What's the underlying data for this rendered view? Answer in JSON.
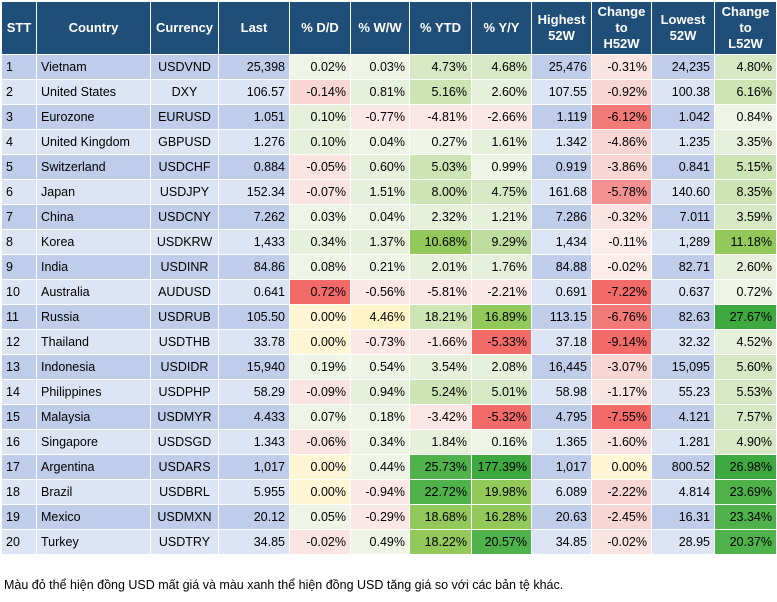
{
  "headers": [
    "STT",
    "Country",
    "Currency",
    "Last",
    "% D/D",
    "% W/W",
    "% YTD",
    "% Y/Y",
    "Highest\n52W",
    "Change\nto\nH52W",
    "Lowest\n52W",
    "Change\nto\nL52W"
  ],
  "rows": [
    [
      "1",
      "Vietnam",
      "USDVND",
      "25,398",
      "0.02%",
      "0.03%",
      "4.73%",
      "4.68%",
      "25,476",
      "-0.31%",
      "24,235",
      "4.80%"
    ],
    [
      "2",
      "United States",
      "DXY",
      "106.57",
      "-0.14%",
      "0.81%",
      "5.16%",
      "2.60%",
      "107.55",
      "-0.92%",
      "100.38",
      "6.16%"
    ],
    [
      "3",
      "Eurozone",
      "EURUSD",
      "1.051",
      "0.10%",
      "-0.77%",
      "-4.81%",
      "-2.66%",
      "1.119",
      "-6.12%",
      "1.042",
      "0.84%"
    ],
    [
      "4",
      "United Kingdom",
      "GBPUSD",
      "1.276",
      "0.10%",
      "0.04%",
      "0.27%",
      "1.61%",
      "1.342",
      "-4.86%",
      "1.235",
      "3.35%"
    ],
    [
      "5",
      "Switzerland",
      "USDCHF",
      "0.884",
      "-0.05%",
      "0.60%",
      "5.03%",
      "0.99%",
      "0.919",
      "-3.86%",
      "0.841",
      "5.15%"
    ],
    [
      "6",
      "Japan",
      "USDJPY",
      "152.34",
      "-0.07%",
      "1.51%",
      "8.00%",
      "4.75%",
      "161.68",
      "-5.78%",
      "140.60",
      "8.35%"
    ],
    [
      "7",
      "China",
      "USDCNY",
      "7.262",
      "0.03%",
      "0.04%",
      "2.32%",
      "1.21%",
      "7.286",
      "-0.32%",
      "7.011",
      "3.59%"
    ],
    [
      "8",
      "Korea",
      "USDKRW",
      "1,433",
      "0.34%",
      "1.37%",
      "10.68%",
      "9.29%",
      "1,434",
      "-0.11%",
      "1,289",
      "11.18%"
    ],
    [
      "9",
      "India",
      "USDINR",
      "84.86",
      "0.08%",
      "0.21%",
      "2.01%",
      "1.76%",
      "84.88",
      "-0.02%",
      "82.71",
      "2.60%"
    ],
    [
      "10",
      "Australia",
      "AUDUSD",
      "0.641",
      "0.72%",
      "-0.56%",
      "-5.81%",
      "-2.21%",
      "0.691",
      "-7.22%",
      "0.637",
      "0.72%"
    ],
    [
      "11",
      "Russia",
      "USDRUB",
      "105.50",
      "0.00%",
      "4.46%",
      "18.21%",
      "16.89%",
      "113.15",
      "-6.76%",
      "82.63",
      "27.67%"
    ],
    [
      "12",
      "Thailand",
      "USDTHB",
      "33.78",
      "0.00%",
      "-0.73%",
      "-1.66%",
      "-5.33%",
      "37.18",
      "-9.14%",
      "32.32",
      "4.52%"
    ],
    [
      "13",
      "Indonesia",
      "USDIDR",
      "15,940",
      "0.19%",
      "0.54%",
      "3.54%",
      "2.08%",
      "16,445",
      "-3.07%",
      "15,095",
      "5.60%"
    ],
    [
      "14",
      "Philippines",
      "USDPHP",
      "58.29",
      "-0.09%",
      "0.94%",
      "5.24%",
      "5.01%",
      "58.98",
      "-1.17%",
      "55.23",
      "5.53%"
    ],
    [
      "15",
      "Malaysia",
      "USDMYR",
      "4.433",
      "0.07%",
      "0.18%",
      "-3.42%",
      "-5.32%",
      "4.795",
      "-7.55%",
      "4.121",
      "7.57%"
    ],
    [
      "16",
      "Singapore",
      "USDSGD",
      "1.343",
      "-0.06%",
      "0.34%",
      "1.84%",
      "0.16%",
      "1.365",
      "-1.60%",
      "1.281",
      "4.90%"
    ],
    [
      "17",
      "Argentina",
      "USDARS",
      "1,017",
      "0.00%",
      "0.44%",
      "25.73%",
      "177.39%",
      "1,017",
      "0.00%",
      "800.52",
      "26.98%"
    ],
    [
      "18",
      "Brazil",
      "USDBRL",
      "5.955",
      "0.00%",
      "-0.94%",
      "22.72%",
      "19.98%",
      "6.089",
      "-2.22%",
      "4.814",
      "23.69%"
    ],
    [
      "19",
      "Mexico",
      "USDMXN",
      "20.12",
      "0.05%",
      "-0.29%",
      "18.68%",
      "16.28%",
      "20.63",
      "-2.45%",
      "16.31",
      "23.34%"
    ],
    [
      "20",
      "Turkey",
      "USDTRY",
      "34.85",
      "-0.02%",
      "0.49%",
      "18.22%",
      "20.57%",
      "34.85",
      "-0.02%",
      "28.95",
      "20.37%"
    ]
  ],
  "heat": [
    [
      null,
      null,
      null,
      null,
      "#eef5e6",
      "#eef5e6",
      "#d6e8c4",
      "#d6e8c4",
      null,
      "#f9e4e2",
      null,
      "#d6e8c4"
    ],
    [
      null,
      null,
      null,
      null,
      "#f7d6d4",
      "#e6f0da",
      "#cde4b4",
      "#e6f0da",
      null,
      "#f7d6d4",
      null,
      "#cde4b4"
    ],
    [
      null,
      null,
      null,
      null,
      "#e6f0da",
      "#fbe8e6",
      "#fbe8e6",
      "#fbe8e6",
      null,
      "#f27a78",
      null,
      "#eef5e6"
    ],
    [
      null,
      null,
      null,
      null,
      "#e6f0da",
      "#eef5e6",
      "#eef5e6",
      "#e6f0da",
      null,
      "#f7d6d4",
      null,
      "#e6f0da"
    ],
    [
      null,
      null,
      null,
      null,
      "#f9e4e2",
      "#e6f0da",
      "#cde4b4",
      "#eef5e6",
      null,
      "#f7d6d4",
      null,
      "#cde4b4"
    ],
    [
      null,
      null,
      null,
      null,
      "#f9e4e2",
      "#e6f0da",
      "#cde4b4",
      "#d6e8c4",
      null,
      "#f39290",
      null,
      "#cde4b4"
    ],
    [
      null,
      null,
      null,
      null,
      "#eef5e6",
      "#eef5e6",
      "#e6f0da",
      "#e6f0da",
      null,
      "#f9e4e2",
      null,
      "#d6e8c4"
    ],
    [
      null,
      null,
      null,
      null,
      "#e6f0da",
      "#e6f0da",
      "#92c95a",
      "#bedd9e",
      null,
      "#fbecea",
      null,
      "#92c95a"
    ],
    [
      null,
      null,
      null,
      null,
      "#eef5e6",
      "#eef5e6",
      "#e6f0da",
      "#e6f0da",
      null,
      "#fbecea",
      null,
      "#e6f0da"
    ],
    [
      null,
      null,
      null,
      null,
      "#f26b69",
      "#fbe8e6",
      "#fbe8e6",
      "#fbe8e6",
      null,
      "#f26b69",
      null,
      "#eef5e6"
    ],
    [
      null,
      null,
      null,
      null,
      "#fff6d6",
      "#fff3c8",
      "#cde4b4",
      "#92c95a",
      null,
      "#f27a78",
      null,
      "#3ea93e"
    ],
    [
      null,
      null,
      null,
      null,
      "#fff6d6",
      "#fbe8e6",
      "#fbe8e6",
      "#f26b69",
      null,
      "#f26b69",
      null,
      "#e6f0da"
    ],
    [
      null,
      null,
      null,
      null,
      "#eef5e6",
      "#eef5e6",
      "#e6f0da",
      "#e6f0da",
      null,
      "#f7d6d4",
      null,
      "#d6e8c4"
    ],
    [
      null,
      null,
      null,
      null,
      "#f9e4e2",
      "#e6f0da",
      "#cde4b4",
      "#d6e8c4",
      null,
      "#f9e4e2",
      null,
      "#d6e8c4"
    ],
    [
      null,
      null,
      null,
      null,
      "#eef5e6",
      "#eef5e6",
      "#fbe8e6",
      "#f26b69",
      null,
      "#f26b69",
      null,
      "#d6e8c4"
    ],
    [
      null,
      null,
      null,
      null,
      "#f9e4e2",
      "#eef5e6",
      "#e6f0da",
      "#eef5e6",
      null,
      "#f9e4e2",
      null,
      "#d6e8c4"
    ],
    [
      null,
      null,
      null,
      null,
      "#fff6d6",
      "#eef5e6",
      "#4fb24a",
      "#3ea93e",
      null,
      "#fff6d6",
      null,
      "#3ea93e"
    ],
    [
      null,
      null,
      null,
      null,
      "#fff6d6",
      "#fbe8e6",
      "#4fb24a",
      "#92c95a",
      null,
      "#f7d6d4",
      null,
      "#4fb24a"
    ],
    [
      null,
      null,
      null,
      null,
      "#eef5e6",
      "#fbe8e6",
      "#92c95a",
      "#92c95a",
      null,
      "#f7d6d4",
      null,
      "#4fb24a"
    ],
    [
      null,
      null,
      null,
      null,
      "#f9e4e2",
      "#eef5e6",
      "#92c95a",
      "#4fb24a",
      null,
      "#f9e4e2",
      null,
      "#4fb24a"
    ]
  ],
  "footnote": "Màu đỏ thể hiện đồng USD mất giá và màu xanh thể hiện đồng USD tăng giá so với các bản tệ khác."
}
